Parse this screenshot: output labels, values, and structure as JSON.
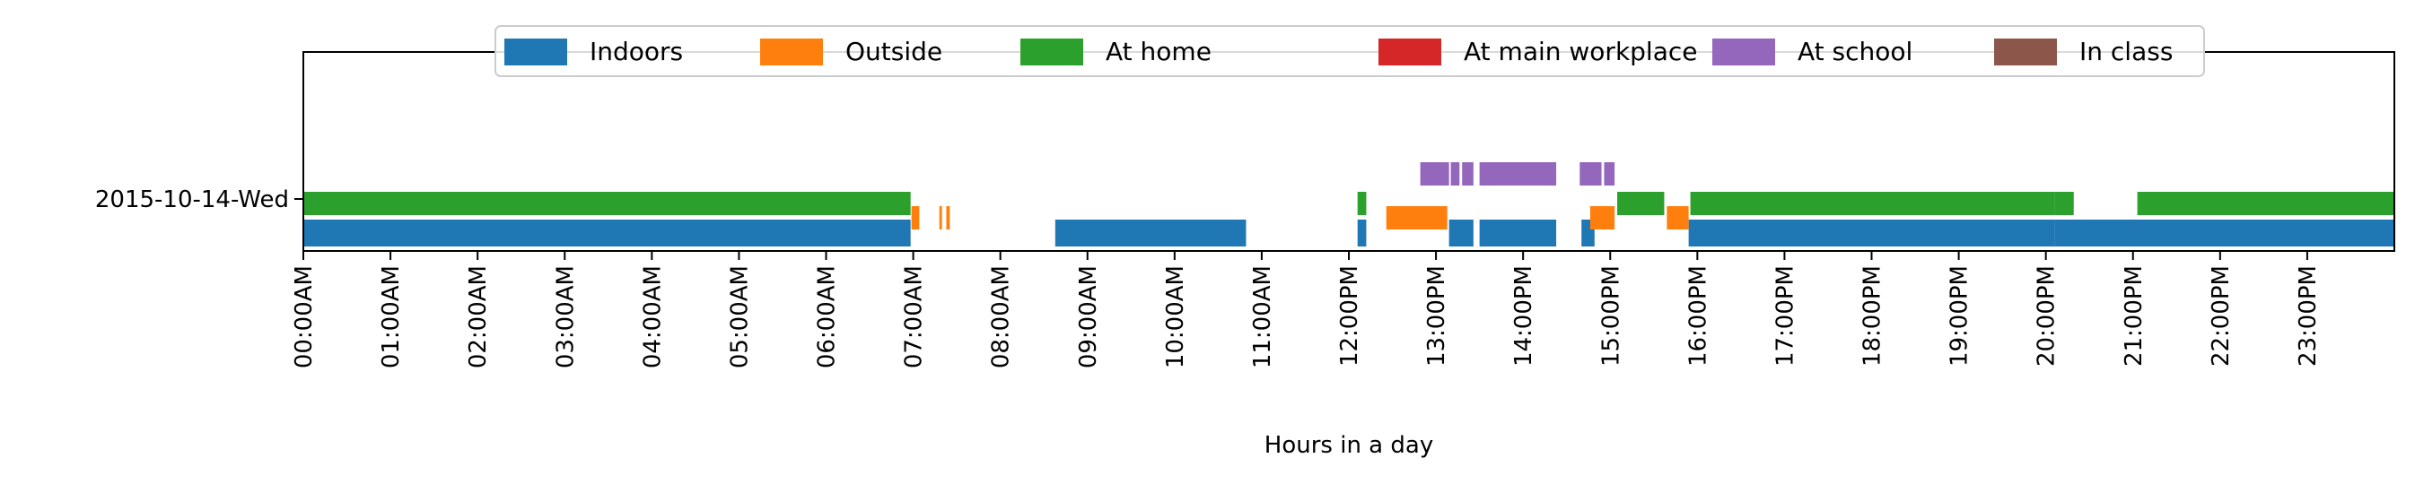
{
  "chart_data": {
    "type": "timeline",
    "xlabel": "Hours in a day",
    "ylabel": "",
    "x_unit": "hours",
    "xlim": [
      0,
      24
    ],
    "grid": false,
    "legend_placement": "top-center",
    "y_categories": [
      "2015-10-14-Wed"
    ],
    "x_ticks": [
      {
        "value": 0,
        "label": "00:00AM"
      },
      {
        "value": 1,
        "label": "01:00AM"
      },
      {
        "value": 2,
        "label": "02:00AM"
      },
      {
        "value": 3,
        "label": "03:00AM"
      },
      {
        "value": 4,
        "label": "04:00AM"
      },
      {
        "value": 5,
        "label": "05:00AM"
      },
      {
        "value": 6,
        "label": "06:00AM"
      },
      {
        "value": 7,
        "label": "07:00AM"
      },
      {
        "value": 8,
        "label": "08:00AM"
      },
      {
        "value": 9,
        "label": "09:00AM"
      },
      {
        "value": 10,
        "label": "10:00AM"
      },
      {
        "value": 11,
        "label": "11:00AM"
      },
      {
        "value": 12,
        "label": "12:00PM"
      },
      {
        "value": 13,
        "label": "13:00PM"
      },
      {
        "value": 14,
        "label": "14:00PM"
      },
      {
        "value": 15,
        "label": "15:00PM"
      },
      {
        "value": 16,
        "label": "16:00PM"
      },
      {
        "value": 17,
        "label": "17:00PM"
      },
      {
        "value": 18,
        "label": "18:00PM"
      },
      {
        "value": 19,
        "label": "19:00PM"
      },
      {
        "value": 20,
        "label": "20:00PM"
      },
      {
        "value": 21,
        "label": "21:00PM"
      },
      {
        "value": 22,
        "label": "22:00PM"
      },
      {
        "value": 23,
        "label": "23:00PM"
      }
    ],
    "series": [
      {
        "name": "Indoors",
        "color": "#1f77b4",
        "row": "2015-10-14-Wed",
        "intervals": [
          [
            0.0,
            6.97
          ],
          [
            8.63,
            10.82
          ],
          [
            12.1,
            12.2
          ],
          [
            13.15,
            13.43
          ],
          [
            13.5,
            14.38
          ],
          [
            14.67,
            14.82
          ],
          [
            15.9,
            20.1
          ],
          [
            20.1,
            24.0
          ]
        ]
      },
      {
        "name": "Outside",
        "color": "#ff7f0e",
        "row": "2015-10-14-Wed",
        "intervals": [
          [
            6.98,
            7.07
          ],
          [
            7.3,
            7.33
          ],
          [
            7.38,
            7.42
          ],
          [
            12.43,
            13.13
          ],
          [
            14.77,
            15.05
          ],
          [
            15.65,
            15.9
          ]
        ]
      },
      {
        "name": "At home",
        "color": "#2ca02c",
        "row": "2015-10-14-Wed",
        "intervals": [
          [
            0.0,
            6.97
          ],
          [
            12.1,
            12.2
          ],
          [
            15.08,
            15.62
          ],
          [
            15.92,
            20.1
          ],
          [
            20.1,
            20.32
          ],
          [
            21.05,
            24.0
          ]
        ]
      },
      {
        "name": "At main workplace",
        "color": "#d62728",
        "row": "2015-10-14-Wed",
        "intervals": []
      },
      {
        "name": "At school",
        "color": "#9467bd",
        "row": "2015-10-14-Wed",
        "intervals": [
          [
            12.82,
            13.15
          ],
          [
            13.17,
            13.27
          ],
          [
            13.3,
            13.43
          ],
          [
            13.5,
            14.38
          ],
          [
            14.65,
            14.9
          ],
          [
            14.93,
            15.05
          ]
        ]
      },
      {
        "name": "In class",
        "color": "#8c564b",
        "row": "2015-10-14-Wed",
        "intervals": []
      }
    ]
  }
}
